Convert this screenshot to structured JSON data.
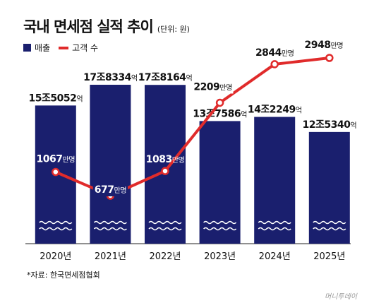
{
  "header": {
    "title": "국내 면세점 실적 추이",
    "unit": "(단위: 원)"
  },
  "legend": {
    "sales": "매출",
    "customers": "고객 수"
  },
  "source": "*자료: 한국면세점협회",
  "watermark": "머니투데이",
  "colors": {
    "bar": "#1a1f6e",
    "line": "#e02b2b",
    "wave": "#ffffff"
  },
  "chart_data": {
    "type": "bar",
    "categories": [
      "2020년",
      "2021년",
      "2022년",
      "2023년",
      "2024년",
      "2025년"
    ],
    "series": [
      {
        "name": "매출",
        "type": "bar",
        "values": [
          15.5052,
          17.8334,
          17.8164,
          13.7586,
          14.2249,
          12.534
        ],
        "labels": [
          {
            "main": "15조5052",
            "unit": "억"
          },
          {
            "main": "17조8334",
            "unit": "억"
          },
          {
            "main": "17조8164",
            "unit": "억"
          },
          {
            "main": "13조7586",
            "unit": "억"
          },
          {
            "main": "14조2249",
            "unit": "억"
          },
          {
            "main": "12조5340",
            "unit": "억"
          }
        ]
      },
      {
        "name": "고객 수",
        "type": "line",
        "values": [
          1067,
          677,
          1083,
          2209,
          2844,
          2948
        ],
        "labels": [
          {
            "main": "1067",
            "unit": "만명"
          },
          {
            "main": "677",
            "unit": "만명"
          },
          {
            "main": "1083",
            "unit": "만명"
          },
          {
            "main": "2209",
            "unit": "만명"
          },
          {
            "main": "2844",
            "unit": "만명"
          },
          {
            "main": "2948",
            "unit": "만명"
          }
        ]
      }
    ],
    "legend_position": "top-left",
    "grid": false
  }
}
